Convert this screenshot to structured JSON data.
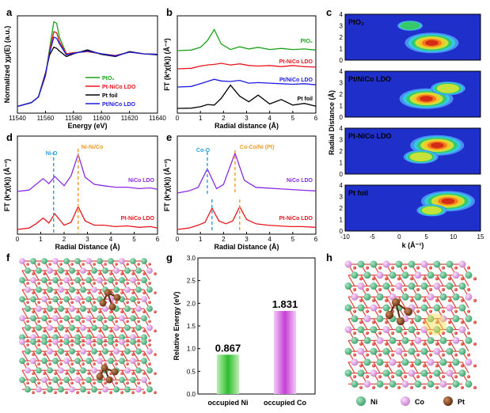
{
  "panel_letters": {
    "a": "a",
    "b": "b",
    "c": "c",
    "d": "d",
    "e": "e",
    "f": "f",
    "g": "g",
    "h": "h"
  },
  "colors": {
    "green": "#1aa31a",
    "red": "#e8161e",
    "black": "#000000",
    "blue": "#1c1ce0",
    "purple": "#8a2be2",
    "orange": "#f29a26",
    "cyan": "#2aa0dc",
    "ni_atom": "#45b07c",
    "co_atom": "#d58ad8",
    "pt_atom": "#7a3d17",
    "o_atom": "#e04438"
  },
  "chart_data": [
    {
      "id": "a",
      "type": "line",
      "xlabel": "Energy (eV)",
      "ylabel": "Normalized χμ(E) (a.u.)",
      "xlim": [
        11540,
        11640
      ],
      "xticks": [
        "11540",
        "11560",
        "11580",
        "11600",
        "11620",
        "11640"
      ],
      "legend": [
        "PtO₂",
        "Pt-NiCo LDO",
        "Pt foil",
        "Pt/NiCo LDO"
      ],
      "series": [
        {
          "name": "PtO₂",
          "x": [
            11540,
            11550,
            11555,
            11560,
            11563,
            11566,
            11568,
            11570,
            11575,
            11580,
            11590,
            11600,
            11610,
            11620,
            11630,
            11640
          ],
          "y": [
            0.05,
            0.12,
            0.22,
            0.6,
            1.1,
            1.58,
            1.55,
            1.3,
            1.0,
            1.02,
            1.04,
            1.0,
            0.97,
            1.03,
            1.0,
            0.99
          ]
        },
        {
          "name": "Pt-NiCo LDO",
          "x": [
            11540,
            11550,
            11555,
            11560,
            11563,
            11566,
            11568,
            11570,
            11575,
            11580,
            11590,
            11600,
            11610,
            11620,
            11630,
            11640
          ],
          "y": [
            0.05,
            0.12,
            0.22,
            0.6,
            1.05,
            1.4,
            1.38,
            1.22,
            1.0,
            1.02,
            1.04,
            1.0,
            0.97,
            1.03,
            1.0,
            0.99
          ]
        },
        {
          "name": "Pt foil",
          "x": [
            11540,
            11550,
            11555,
            11560,
            11563,
            11566,
            11568,
            11570,
            11575,
            11580,
            11590,
            11600,
            11610,
            11620,
            11630,
            11640
          ],
          "y": [
            0.05,
            0.12,
            0.22,
            0.65,
            0.98,
            1.12,
            1.1,
            1.05,
            0.95,
            1.0,
            1.07,
            0.99,
            0.95,
            1.04,
            1.0,
            0.98
          ]
        },
        {
          "name": "Pt/NiCo LDO",
          "x": [
            11540,
            11550,
            11555,
            11560,
            11563,
            11566,
            11568,
            11570,
            11575,
            11580,
            11590,
            11600,
            11610,
            11620,
            11630,
            11640
          ],
          "y": [
            0.05,
            0.12,
            0.22,
            0.62,
            1.02,
            1.3,
            1.28,
            1.18,
            0.98,
            1.01,
            1.05,
            1.0,
            0.96,
            1.03,
            1.0,
            0.99
          ]
        }
      ]
    },
    {
      "id": "b",
      "type": "line",
      "xlabel": "Radial distance (Å)",
      "ylabel": "FT (k²χ(k)) (Å⁻³)",
      "xlim": [
        0,
        6
      ],
      "xticks": [
        "0",
        "1",
        "2",
        "3",
        "4",
        "5",
        "6"
      ],
      "series": [
        {
          "name": "PtO₂",
          "x": [
            0,
            0.6,
            1.0,
            1.3,
            1.6,
            1.9,
            2.3,
            2.7,
            3.1,
            3.5,
            4.0,
            4.5,
            5.0,
            5.5,
            6.0
          ],
          "y": [
            0.0,
            0.05,
            0.3,
            0.9,
            1.9,
            0.6,
            0.1,
            0.35,
            0.15,
            0.3,
            0.1,
            0.2,
            0.1,
            0.15,
            0.05
          ]
        },
        {
          "name": "Pt-NiCo LDO",
          "x": [
            0,
            0.6,
            1.0,
            1.3,
            1.6,
            1.9,
            2.3,
            2.7,
            3.1,
            3.5,
            4.0,
            4.5,
            5.0,
            5.5,
            6.0
          ],
          "y": [
            0.0,
            0.05,
            0.25,
            0.35,
            0.4,
            0.5,
            0.35,
            0.45,
            0.3,
            0.25,
            0.3,
            0.2,
            0.3,
            0.2,
            0.15
          ]
        },
        {
          "name": "Pt/NiCo LDO",
          "x": [
            0,
            0.6,
            1.0,
            1.3,
            1.6,
            1.9,
            2.3,
            2.7,
            3.1,
            3.5,
            4.0,
            4.5,
            5.0,
            5.5,
            6.0
          ],
          "y": [
            0.0,
            0.05,
            0.3,
            0.5,
            0.7,
            0.55,
            0.5,
            0.6,
            0.35,
            0.4,
            0.35,
            0.3,
            0.25,
            0.3,
            0.2
          ]
        },
        {
          "name": "Pt foil",
          "x": [
            0,
            0.6,
            1.0,
            1.3,
            1.6,
            1.9,
            2.3,
            2.7,
            3.1,
            3.5,
            4.0,
            4.5,
            5.0,
            5.5,
            6.0
          ],
          "y": [
            0.0,
            0.02,
            0.15,
            0.35,
            0.3,
            0.9,
            2.1,
            1.1,
            0.6,
            1.2,
            0.4,
            0.8,
            0.3,
            0.45,
            0.2
          ]
        }
      ]
    },
    {
      "id": "d",
      "type": "line",
      "xlabel": "Radial Distance (Å)",
      "ylabel": "FT (k²χ(k)) (Å⁻³)",
      "xlim": [
        0,
        6
      ],
      "xticks": [
        "0",
        "1",
        "2",
        "3",
        "4",
        "5",
        "6"
      ],
      "annotations": [
        "Ni-O",
        "Ni-Ni/Co"
      ],
      "series": [
        {
          "name": "NiCo LDO",
          "x": [
            0,
            0.5,
            0.8,
            1.1,
            1.35,
            1.6,
            2.0,
            2.3,
            2.6,
            2.9,
            3.3,
            3.7,
            4.2,
            4.7,
            5.2,
            5.7,
            6.0
          ],
          "y": [
            0.0,
            0.1,
            0.5,
            0.9,
            0.55,
            1.05,
            0.4,
            1.1,
            2.6,
            1.0,
            0.5,
            0.4,
            0.3,
            0.3,
            0.2,
            0.25,
            0.15
          ]
        },
        {
          "name": "Pt-NiCo LDO",
          "x": [
            0,
            0.5,
            0.8,
            1.1,
            1.35,
            1.6,
            2.0,
            2.3,
            2.6,
            2.9,
            3.3,
            3.7,
            4.2,
            4.7,
            5.2,
            5.7,
            6.0
          ],
          "y": [
            0.0,
            0.1,
            0.4,
            0.8,
            0.45,
            1.1,
            0.3,
            0.5,
            1.6,
            0.6,
            0.3,
            0.3,
            0.2,
            0.25,
            0.15,
            0.2,
            0.1
          ]
        }
      ]
    },
    {
      "id": "e",
      "type": "line",
      "xlabel": "Radial Distance (Å)",
      "ylabel": "FT (k²χ(k)) (Å⁻³)",
      "xlim": [
        0,
        6
      ],
      "xticks": [
        "0",
        "1",
        "2",
        "3",
        "4",
        "5",
        "6"
      ],
      "annotations": [
        "Co-O",
        "Co-Co/Ni (Pt)"
      ],
      "series": [
        {
          "name": "NiCo LDO",
          "x": [
            0,
            0.5,
            0.9,
            1.3,
            1.7,
            2.0,
            2.5,
            2.9,
            3.4,
            3.9,
            4.4,
            4.9,
            5.4,
            6.0
          ],
          "y": [
            0.0,
            0.15,
            0.4,
            1.7,
            0.3,
            0.6,
            2.8,
            0.9,
            0.4,
            0.35,
            0.3,
            0.25,
            0.2,
            0.15
          ]
        },
        {
          "name": "Pt-NiCo LDO",
          "x": [
            0,
            0.5,
            0.9,
            1.2,
            1.5,
            1.8,
            2.1,
            2.4,
            2.7,
            3.0,
            3.4,
            3.9,
            4.4,
            4.9,
            5.4,
            6.0
          ],
          "y": [
            0.0,
            0.1,
            0.3,
            0.5,
            1.5,
            0.6,
            0.4,
            0.6,
            1.6,
            0.7,
            0.4,
            0.3,
            0.25,
            0.2,
            0.2,
            0.15
          ]
        }
      ]
    },
    {
      "id": "c",
      "type": "heatmap",
      "xlabel": "k (Å⁻¹)",
      "ylabel": "Radial Distance (Å)",
      "xlim": [
        -10,
        15
      ],
      "ylim": [
        0,
        4
      ],
      "xticks": [
        "-10",
        "-5",
        "0",
        "5",
        "10",
        "15"
      ],
      "yticks": [
        "0",
        "1",
        "2",
        "3",
        "4"
      ],
      "maps": [
        {
          "name": "PtO₂",
          "spots": [
            {
              "k": 6,
              "r": 1.5,
              "intensity": 1.0
            },
            {
              "k": 2,
              "r": 3.0,
              "intensity": 0.4
            }
          ]
        },
        {
          "name": "Pt/NiCo LDO",
          "spots": [
            {
              "k": 5,
              "r": 1.6,
              "intensity": 1.0
            },
            {
              "k": 9,
              "r": 2.5,
              "intensity": 0.6
            }
          ]
        },
        {
          "name": "Pt-NiCo LDO",
          "spots": [
            {
              "k": 7,
              "r": 2.5,
              "intensity": 1.0
            },
            {
              "k": 4,
              "r": 1.5,
              "intensity": 0.6
            }
          ]
        },
        {
          "name": "Pt foil",
          "spots": [
            {
              "k": 9,
              "r": 2.6,
              "intensity": 1.0
            },
            {
              "k": 6,
              "r": 1.8,
              "intensity": 0.5
            }
          ]
        }
      ]
    },
    {
      "id": "g",
      "type": "bar",
      "xlabel": "",
      "ylabel": "Relative Energy (eV)",
      "ylim": [
        0.0,
        3.0
      ],
      "yticks": [
        "0.0",
        "0.5",
        "1.0",
        "1.5",
        "2.0",
        "2.5",
        "3.0"
      ],
      "categories": [
        "occupied Ni",
        "occupied Co"
      ],
      "values": [
        0.867,
        1.831
      ],
      "data_labels": [
        "0.867",
        "1.831"
      ]
    }
  ],
  "legend_h": {
    "ni": "Ni",
    "co": "Co",
    "pt": "Pt"
  }
}
